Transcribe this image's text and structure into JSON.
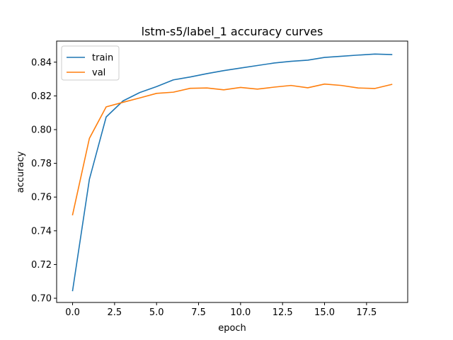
{
  "chart_data": {
    "type": "line",
    "title": "lstm-s5/label_1 accuracy curves",
    "xlabel": "epoch",
    "ylabel": "accuracy",
    "x": [
      0,
      1,
      2,
      3,
      4,
      5,
      6,
      7,
      8,
      9,
      10,
      11,
      12,
      13,
      14,
      15,
      16,
      17,
      18,
      19
    ],
    "xlim": [
      -0.95,
      19.95
    ],
    "ylim": [
      0.6975,
      0.8525
    ],
    "xticks": [
      0.0,
      2.5,
      5.0,
      7.5,
      10.0,
      12.5,
      15.0,
      17.5
    ],
    "xtick_labels": [
      "0.0",
      "2.5",
      "5.0",
      "7.5",
      "10.0",
      "12.5",
      "15.0",
      "17.5"
    ],
    "yticks": [
      0.7,
      0.72,
      0.74,
      0.76,
      0.78,
      0.8,
      0.82,
      0.84
    ],
    "ytick_labels": [
      "0.70",
      "0.72",
      "0.74",
      "0.76",
      "0.78",
      "0.80",
      "0.82",
      "0.84"
    ],
    "grid": false,
    "legend_position": "upper-left",
    "series": [
      {
        "name": "train",
        "color": "#1f77b4",
        "values": [
          0.7045,
          0.7705,
          0.8075,
          0.817,
          0.822,
          0.8255,
          0.8295,
          0.8312,
          0.8332,
          0.835,
          0.8365,
          0.838,
          0.8395,
          0.8405,
          0.8412,
          0.8428,
          0.8435,
          0.8442,
          0.8448,
          0.8445
        ]
      },
      {
        "name": "val",
        "color": "#ff7f0e",
        "values": [
          0.7495,
          0.7948,
          0.8135,
          0.8162,
          0.8188,
          0.8215,
          0.8222,
          0.8245,
          0.8247,
          0.8236,
          0.825,
          0.824,
          0.8252,
          0.8262,
          0.8248,
          0.827,
          0.8262,
          0.8247,
          0.8244,
          0.8268
        ]
      }
    ]
  }
}
